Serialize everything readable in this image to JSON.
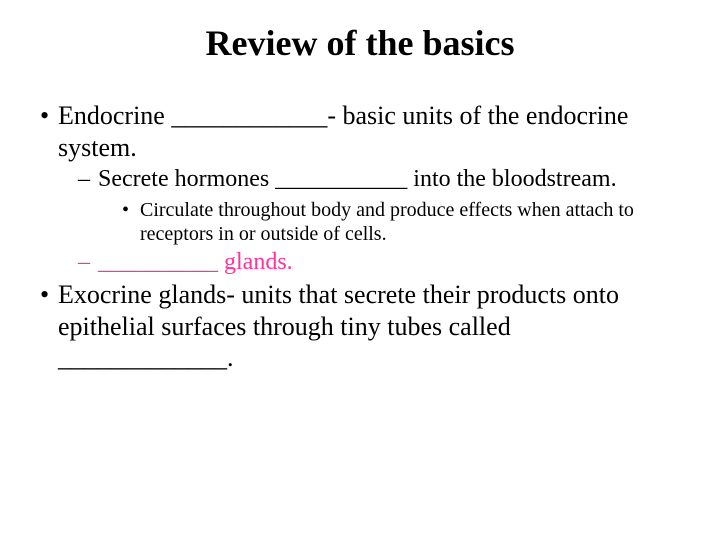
{
  "title": "Review of the basics",
  "colors": {
    "accent": "#ff3399",
    "text": "#000000",
    "background": "#ffffff"
  },
  "fontsizes": {
    "title": 36,
    "level1": 26,
    "level2": 24,
    "level3": 20
  },
  "bullets": {
    "level1a": "Endocrine  ____________- basic units of the endocrine system.",
    "level2a": "Secrete hormones ___________ into the bloodstream.",
    "level3a": "Circulate throughout body and produce effects when attach to receptors in or outside of cells.",
    "level2b": "__________ glands.",
    "level1b": "Exocrine glands- units that secrete their products onto epithelial surfaces through tiny tubes called _____________."
  }
}
